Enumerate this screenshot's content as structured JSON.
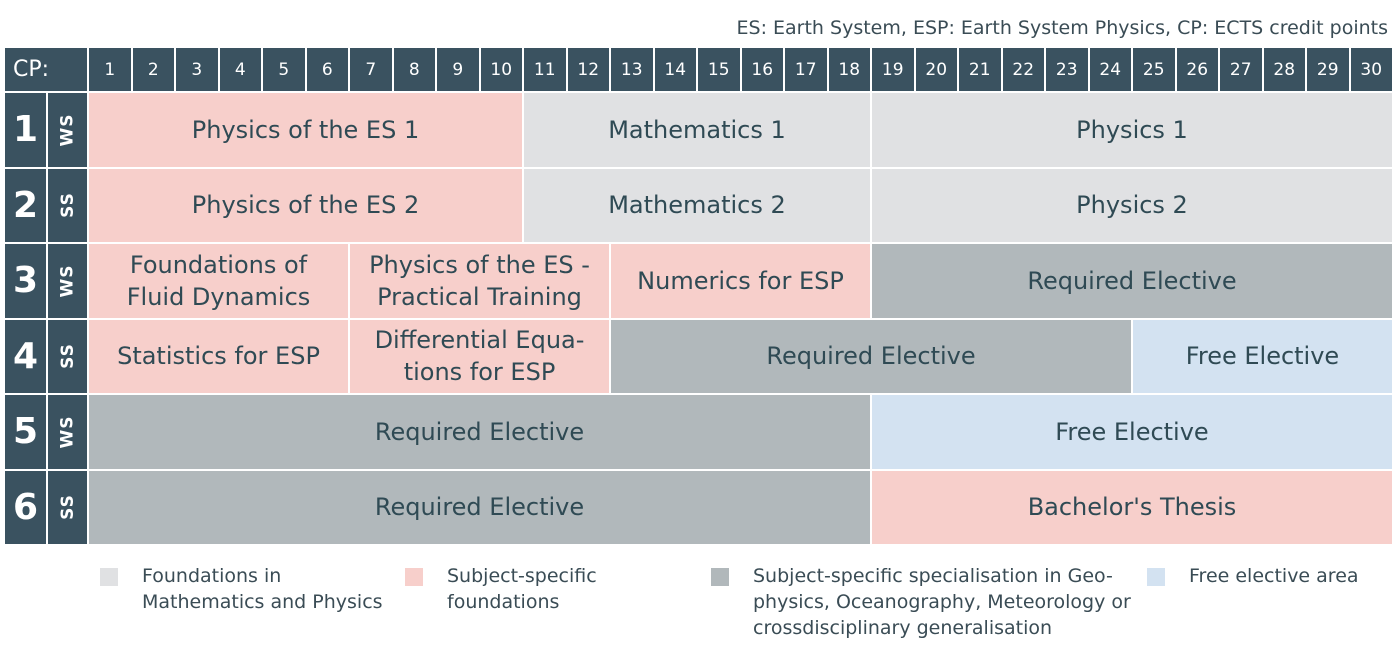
{
  "note": "ES: Earth System, ESP: Earth System Physics, CP: ECTS credit points",
  "header": {
    "cp_label": "CP:",
    "credits": [
      "1",
      "2",
      "3",
      "4",
      "5",
      "6",
      "7",
      "8",
      "9",
      "10",
      "11",
      "12",
      "13",
      "14",
      "15",
      "16",
      "17",
      "18",
      "19",
      "20",
      "21",
      "22",
      "23",
      "24",
      "25",
      "26",
      "27",
      "28",
      "29",
      "30"
    ]
  },
  "colors": {
    "header_bg": "#3a5260",
    "foundations_math_physics": "#e0e1e3",
    "subject_specific_foundations": "#f7cfcb",
    "specialisation": "#b1b8bb",
    "free_elective": "#d3e2f1"
  },
  "semesters": [
    {
      "number": "1",
      "term": "WS",
      "modules": [
        {
          "label": "Physics of the ES 1",
          "category": "subject_specific_foundations",
          "start_cp": 1,
          "end_cp": 10
        },
        {
          "label": "Mathematics 1",
          "category": "foundations_math_physics",
          "start_cp": 11,
          "end_cp": 18
        },
        {
          "label": "Physics 1",
          "category": "foundations_math_physics",
          "start_cp": 19,
          "end_cp": 30
        }
      ]
    },
    {
      "number": "2",
      "term": "SS",
      "modules": [
        {
          "label": "Physics of the ES 2",
          "category": "subject_specific_foundations",
          "start_cp": 1,
          "end_cp": 10
        },
        {
          "label": "Mathematics 2",
          "category": "foundations_math_physics",
          "start_cp": 11,
          "end_cp": 18
        },
        {
          "label": "Physics 2",
          "category": "foundations_math_physics",
          "start_cp": 19,
          "end_cp": 30
        }
      ]
    },
    {
      "number": "3",
      "term": "WS",
      "modules": [
        {
          "label": "Foundations of\nFluid Dynamics",
          "category": "subject_specific_foundations",
          "start_cp": 1,
          "end_cp": 6
        },
        {
          "label": "Physics of the ES -\nPractical Training",
          "category": "subject_specific_foundations",
          "start_cp": 7,
          "end_cp": 12
        },
        {
          "label": "Numerics for ESP",
          "category": "subject_specific_foundations",
          "start_cp": 13,
          "end_cp": 18
        },
        {
          "label": "Required Elective",
          "category": "specialisation",
          "start_cp": 19,
          "end_cp": 30
        }
      ]
    },
    {
      "number": "4",
      "term": "SS",
      "modules": [
        {
          "label": "Statistics for ESP",
          "category": "subject_specific_foundations",
          "start_cp": 1,
          "end_cp": 6
        },
        {
          "label": "Differential Equa-\ntions for ESP",
          "category": "subject_specific_foundations",
          "start_cp": 7,
          "end_cp": 12
        },
        {
          "label": "Required Elective",
          "category": "specialisation",
          "start_cp": 13,
          "end_cp": 24
        },
        {
          "label": "Free Elective",
          "category": "free_elective",
          "start_cp": 25,
          "end_cp": 30
        }
      ]
    },
    {
      "number": "5",
      "term": "WS",
      "modules": [
        {
          "label": "Required Elective",
          "category": "specialisation",
          "start_cp": 1,
          "end_cp": 18
        },
        {
          "label": "Free Elective",
          "category": "free_elective",
          "start_cp": 19,
          "end_cp": 30
        }
      ]
    },
    {
      "number": "6",
      "term": "SS",
      "modules": [
        {
          "label": "Required Elective",
          "category": "specialisation",
          "start_cp": 1,
          "end_cp": 18
        },
        {
          "label": "Bachelor's Thesis",
          "category": "subject_specific_foundations",
          "start_cp": 19,
          "end_cp": 30
        }
      ]
    }
  ],
  "legend": [
    {
      "category": "foundations_math_physics",
      "text": "Foundations in\nMathematics and Physics"
    },
    {
      "category": "subject_specific_foundations",
      "text": "Subject-specific\nfoundations"
    },
    {
      "category": "specialisation",
      "text": "Subject-specific specialisation in Geo-\nphysics, Oceanography, Meteorology or\ncrossdisciplinary generalisation"
    },
    {
      "category": "free_elective",
      "text": "Free elective area"
    }
  ]
}
